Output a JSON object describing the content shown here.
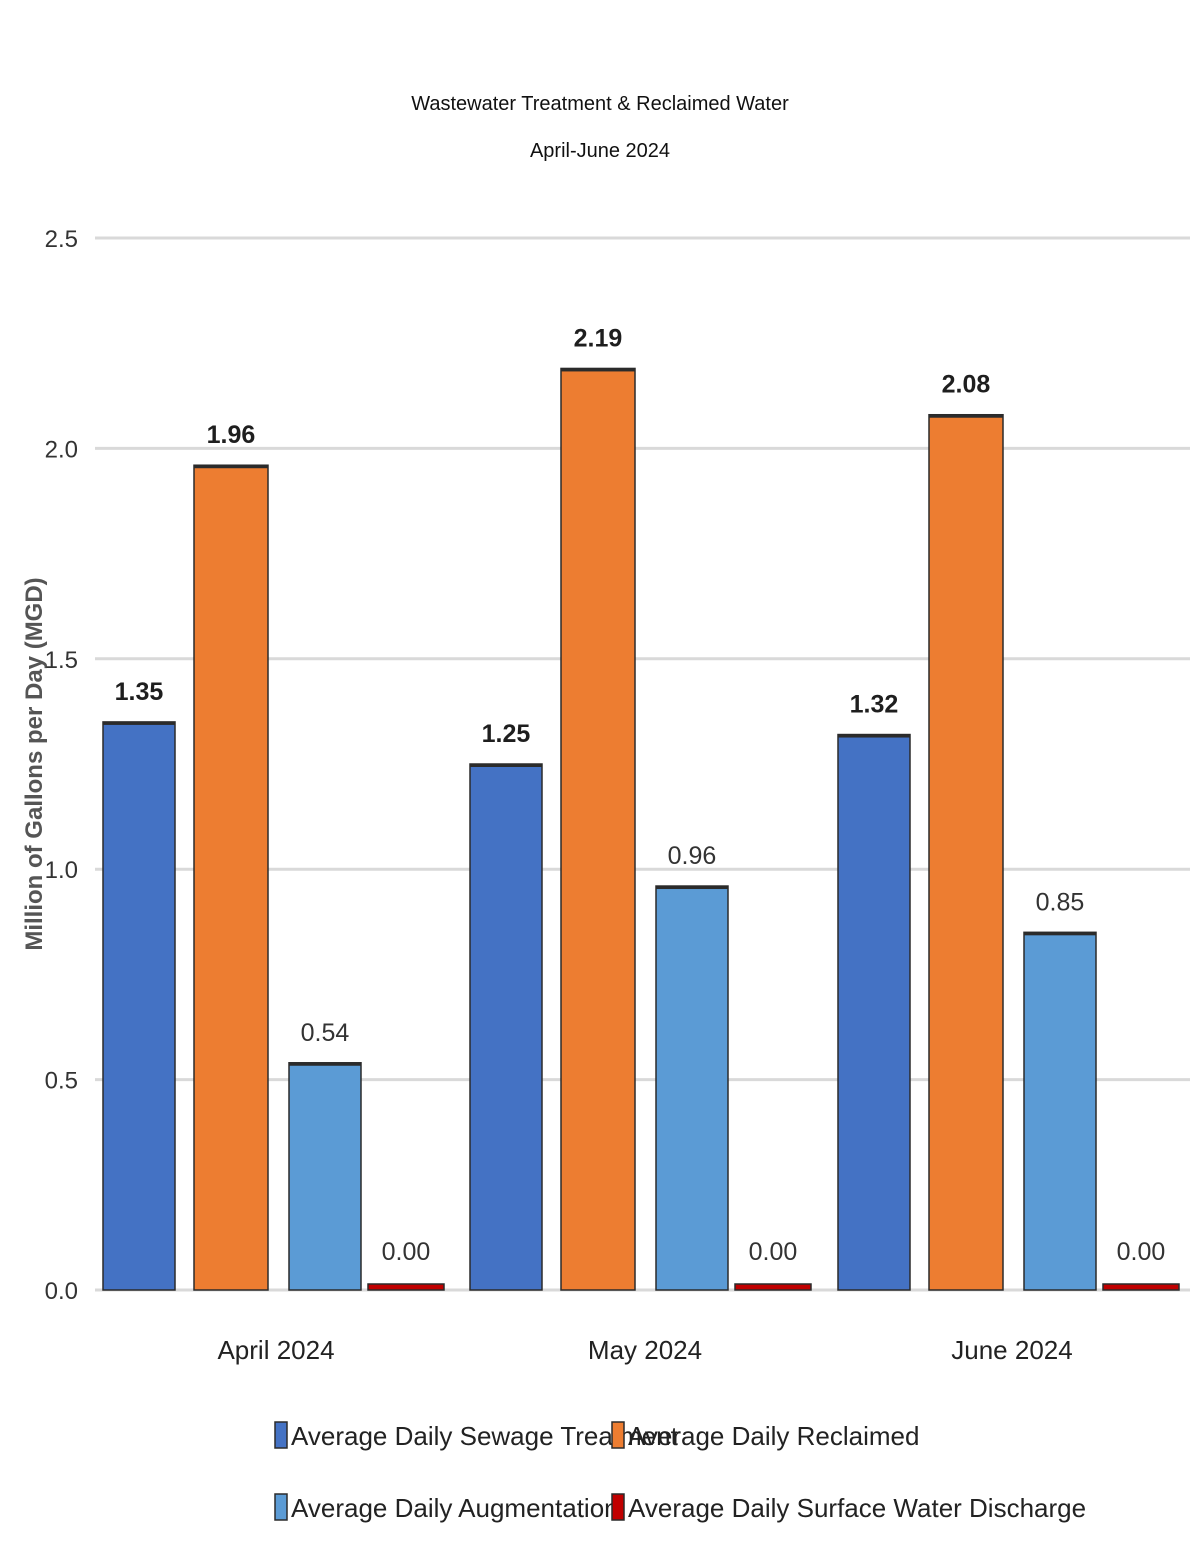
{
  "chart_data": {
    "type": "bar",
    "title": "Wastewater Treatment & Reclaimed Water",
    "subtitle": "April-June 2024",
    "ylabel": "Million of Gallons per Day (MGD)",
    "xlabel": "",
    "ylim": [
      0,
      2.5
    ],
    "yticks": [
      0.0,
      0.5,
      1.0,
      1.5,
      2.0,
      2.5
    ],
    "ytick_labels": [
      "0.0",
      "0.5",
      "1.0",
      "1.5",
      "2.0",
      "2.5"
    ],
    "grid": true,
    "legend_position": "bottom",
    "categories": [
      "April 2024",
      "May 2024",
      "June 2024"
    ],
    "series": [
      {
        "name": "Average Daily Sewage Treatment",
        "color": "#4472C4",
        "values": [
          1.35,
          1.25,
          1.32
        ],
        "labels": [
          "1.35",
          "1.25",
          "1.32"
        ]
      },
      {
        "name": "Average Daily Reclaimed",
        "color": "#ED7D31",
        "values": [
          1.96,
          2.19,
          2.08
        ],
        "labels": [
          "1.96",
          "2.19",
          "2.08"
        ]
      },
      {
        "name": "Average Daily Augmentation",
        "color": "#5B9BD5",
        "values": [
          0.54,
          0.96,
          0.85
        ],
        "labels": [
          "0.54",
          "0.96",
          "0.85"
        ]
      },
      {
        "name": "Average Daily Surface Water Discharge",
        "color": "#C00000",
        "values": [
          0.0,
          0.0,
          0.0
        ],
        "labels": [
          "0.00",
          "0.00",
          "0.00"
        ]
      }
    ]
  }
}
